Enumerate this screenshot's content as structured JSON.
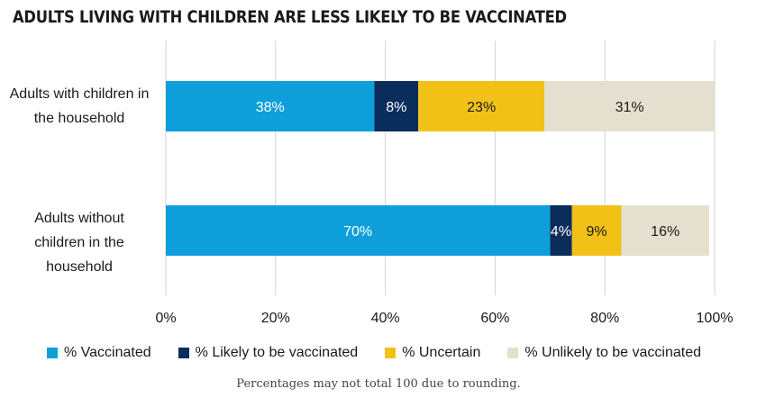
{
  "chart_data": {
    "type": "bar",
    "orientation": "horizontal",
    "stacked": true,
    "title": "ADULTS LIVING WITH CHILDREN ARE LESS LIKELY TO BE VACCINATED",
    "categories": [
      "Adults with children in the household",
      "Adults without children in the household"
    ],
    "series": [
      {
        "name": "% Vaccinated",
        "values": [
          38,
          70
        ],
        "labels": [
          "38%",
          "70%"
        ],
        "color": "#0e9fdb",
        "label_color": "#ffffff"
      },
      {
        "name": "% Likely to be vaccinated",
        "values": [
          8,
          4
        ],
        "labels": [
          "8%",
          "4%"
        ],
        "color": "#0b2d5b",
        "label_color": "#ffffff"
      },
      {
        "name": "% Uncertain",
        "values": [
          23,
          9
        ],
        "labels": [
          "23%",
          "9%"
        ],
        "color": "#f1c117",
        "label_color": "#1a1a1a"
      },
      {
        "name": "% Unlikely to be vaccinated",
        "values": [
          31,
          16
        ],
        "labels": [
          "31%",
          "16%"
        ],
        "color": "#e5dfd0",
        "label_color": "#1a1a1a"
      }
    ],
    "xlim": [
      0,
      100
    ],
    "x_ticks": [
      "0%",
      "20%",
      "40%",
      "60%",
      "80%",
      "100%"
    ],
    "grid": true,
    "legend": "bottom",
    "note": "Percentages may not total 100 due to rounding."
  }
}
